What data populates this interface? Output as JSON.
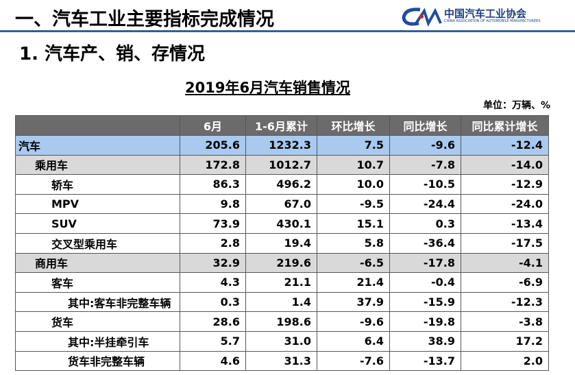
{
  "header": {
    "title": "一、汽车工业主要指标完成情况",
    "logo_name": "中国汽车工业协会",
    "logo_subtitle": "CHINA ASSOCIATION OF AUTOMOBILE MANUFACTURERS"
  },
  "section_title": "1. 汽车产、销、存情况",
  "table": {
    "title": "2019年6月汽车销售情况",
    "unit": "单位：万辆、%",
    "columns": [
      "6月",
      "1-6月累计",
      "环比增长",
      "同比增长",
      "同比累计增长"
    ],
    "rows": [
      [
        "汽车",
        "205.6",
        "1232.3",
        "7.5",
        "-9.6",
        "-12.4"
      ],
      [
        "乘用车",
        "172.8",
        "1012.7",
        "10.7",
        "-7.8",
        "-14.0"
      ],
      [
        "轿车",
        "86.3",
        "496.2",
        "10.0",
        "-10.5",
        "-12.9"
      ],
      [
        "MPV",
        "9.8",
        "67.0",
        "-9.5",
        "-24.4",
        "-24.0"
      ],
      [
        "SUV",
        "73.9",
        "430.1",
        "15.1",
        "0.3",
        "-13.4"
      ],
      [
        "交叉型乘用车",
        "2.8",
        "19.4",
        "5.8",
        "-36.4",
        "-17.5"
      ],
      [
        "商用车",
        "32.9",
        "219.6",
        "-6.5",
        "-17.8",
        "-4.1"
      ],
      [
        "客车",
        "4.3",
        "21.1",
        "21.4",
        "-0.4",
        "-6.9"
      ],
      [
        "其中:客车非完整车辆",
        "0.3",
        "1.4",
        "37.9",
        "-15.9",
        "-12.3"
      ],
      [
        "货车",
        "28.6",
        "198.6",
        "-9.6",
        "-19.8",
        "-3.8"
      ],
      [
        "其中:半挂牵引车",
        "5.7",
        "31.0",
        "6.4",
        "38.9",
        "17.2"
      ],
      [
        "货车非完整车辆",
        "4.6",
        "31.3",
        "-7.6",
        "-13.7",
        "2.0"
      ]
    ]
  }
}
